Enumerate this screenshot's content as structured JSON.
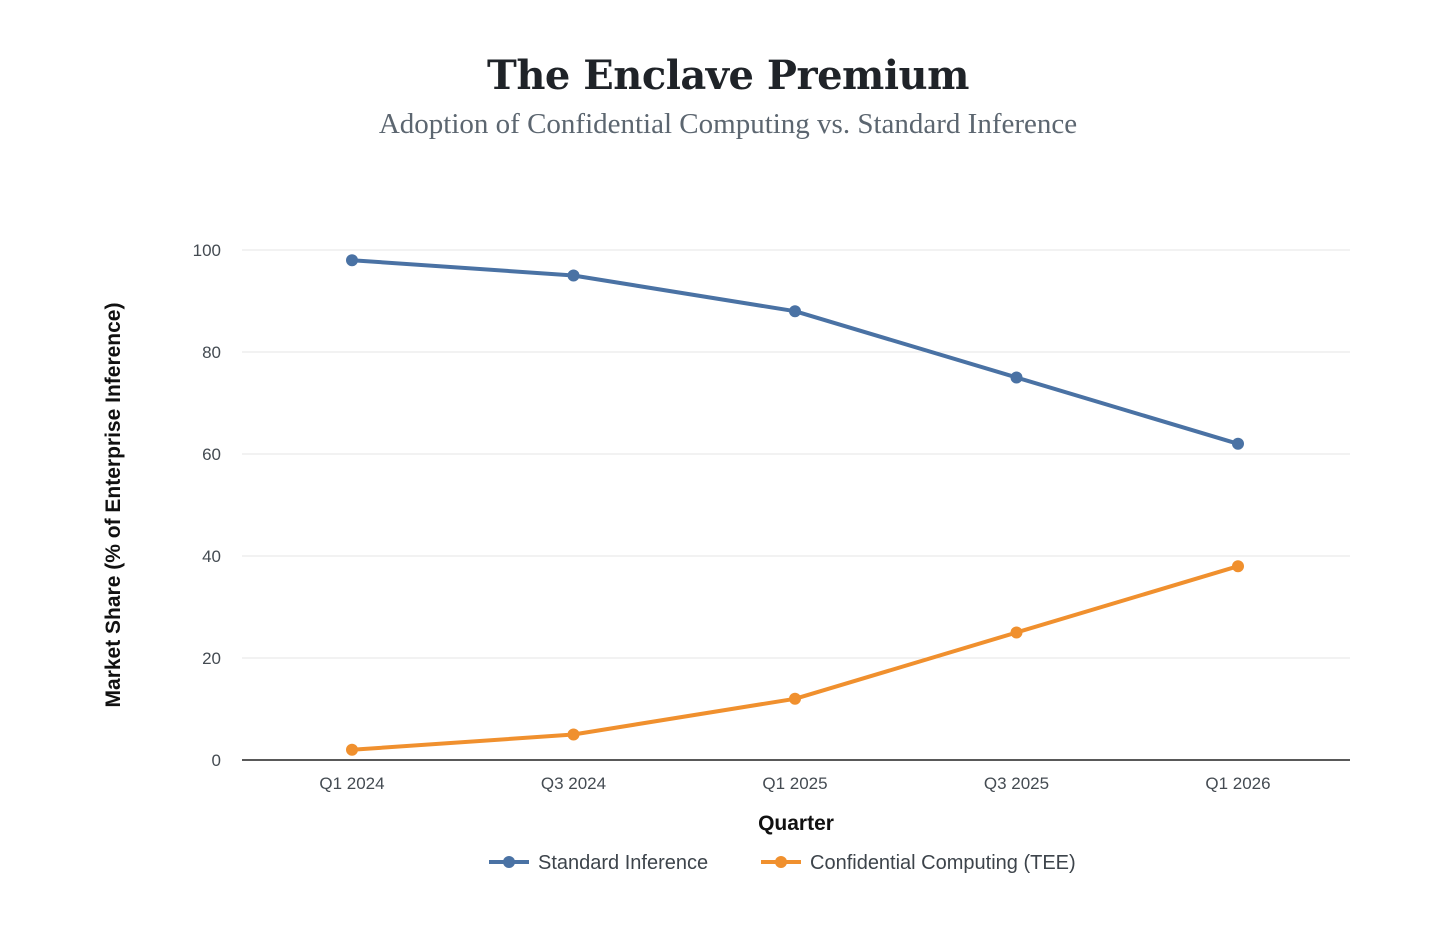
{
  "chart_data": {
    "type": "line",
    "title": "The Enclave Premium",
    "subtitle": "Adoption of Confidential Computing vs. Standard Inference",
    "xlabel": "Quarter",
    "ylabel": "Market Share (% of Enterprise Inference)",
    "categories": [
      "Q1 2024",
      "Q3 2024",
      "Q1 2025",
      "Q3 2025",
      "Q1 2026"
    ],
    "series": [
      {
        "name": "Standard Inference",
        "color": "#4a72a4",
        "values": [
          98,
          95,
          88,
          75,
          62
        ]
      },
      {
        "name": "Confidential Computing (TEE)",
        "color": "#f0902e",
        "values": [
          2,
          5,
          12,
          25,
          38
        ]
      }
    ],
    "ylim": [
      0,
      100
    ],
    "yticks": [
      0,
      20,
      40,
      60,
      80,
      100
    ],
    "grid": true,
    "legend_position": "bottom-center"
  }
}
